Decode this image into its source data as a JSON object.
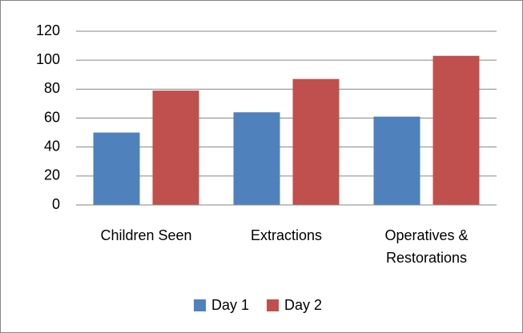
{
  "chart_data": {
    "type": "bar",
    "categories": [
      "Children Seen",
      "Extractions",
      "Operatives & Restorations"
    ],
    "series": [
      {
        "name": "Day 1",
        "color": "#4f81bd",
        "values": [
          50,
          64,
          61
        ]
      },
      {
        "name": "Day 2",
        "color": "#c0504d",
        "values": [
          79,
          87,
          103
        ]
      }
    ],
    "ylim": [
      0,
      120
    ],
    "yticks": [
      0,
      20,
      40,
      60,
      80,
      100,
      120
    ],
    "grid": true,
    "legend": "bottom"
  }
}
